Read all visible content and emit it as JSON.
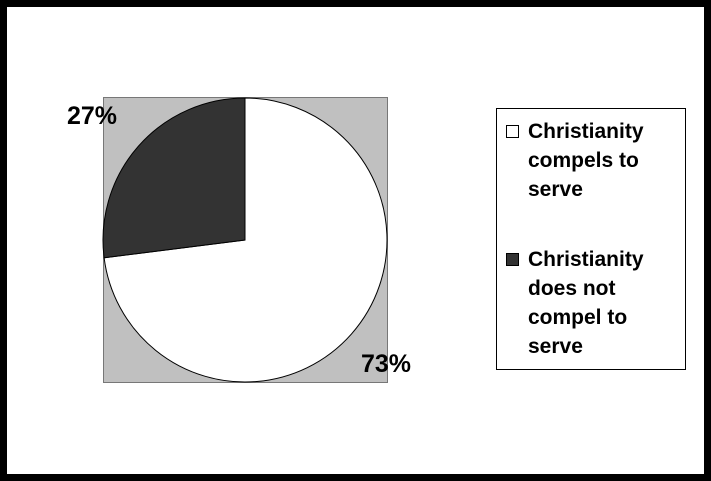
{
  "chart_data": {
    "type": "pie",
    "title": "",
    "categories": [
      "Christianity compels to serve",
      "Christianity does not compel to serve"
    ],
    "values": [
      73,
      27
    ],
    "value_labels": [
      "73%",
      "27%"
    ],
    "colors": [
      "#ffffff",
      "#333333"
    ],
    "plot_background": "#c0c0c0",
    "start_angle_deg": 0,
    "legend_position": "right"
  },
  "legend": {
    "items": [
      {
        "label_lines": [
          "Christianity",
          "compels to",
          "serve"
        ],
        "color": "#ffffff"
      },
      {
        "label_lines": [
          "Christianity",
          "does not",
          "compel to",
          "serve"
        ],
        "color": "#333333"
      }
    ]
  }
}
